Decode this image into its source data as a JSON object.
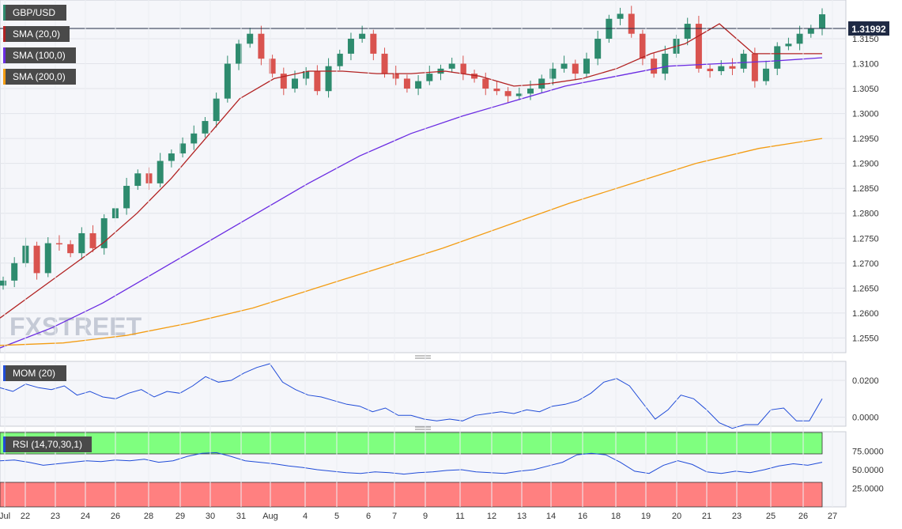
{
  "chart_data": [
    {
      "type": "candlestick",
      "symbol": "GBP/USD",
      "last_price": "1.31992",
      "y_ticks": [
        "1.3150",
        "1.3100",
        "1.3050",
        "1.3000",
        "1.2950",
        "1.2900",
        "1.2850",
        "1.2800",
        "1.2750",
        "1.2700",
        "1.2650",
        "1.2600",
        "1.2550"
      ],
      "ylim": [
        1.253,
        1.3215
      ],
      "grid": true,
      "x_ticks": [
        "Jul",
        "22",
        "23",
        "24",
        "26",
        "28",
        "29",
        "30",
        "31",
        "Aug",
        "4",
        "5",
        "6",
        "7",
        "9",
        "11",
        "12",
        "13",
        "14",
        "16",
        "18",
        "19",
        "20",
        "21",
        "23",
        "25",
        "26",
        "27"
      ],
      "watermark": "FXSTREET",
      "colors": {
        "up": "#2e8b6e",
        "down": "#d9534f"
      },
      "series": [
        {
          "name": "GBP/USD",
          "values": [
            1.2665,
            1.27,
            1.2735,
            1.268,
            1.274,
            1.2738,
            1.272,
            1.276,
            1.273,
            1.279,
            1.281,
            1.2855,
            1.288,
            1.286,
            1.2905,
            1.292,
            1.294,
            1.296,
            1.2985,
            1.303,
            1.31,
            1.314,
            1.316,
            1.311,
            1.308,
            1.305,
            1.307,
            1.3085,
            1.3045,
            1.3095,
            1.312,
            1.315,
            1.316,
            1.312,
            1.308,
            1.307,
            1.305,
            1.3065,
            1.308,
            1.309,
            1.31,
            1.308,
            1.307,
            1.305,
            1.3045,
            1.3035,
            1.304,
            1.305,
            1.307,
            1.309,
            1.31,
            1.308,
            1.311,
            1.315,
            1.319,
            1.32,
            1.316,
            1.311,
            1.308,
            1.312,
            1.315,
            1.318,
            1.309,
            1.3085,
            1.3095,
            1.309,
            1.312,
            1.3065,
            1.309,
            1.3135,
            1.314,
            1.316,
            1.317,
            1.3199
          ]
        },
        {
          "name": "SMA (20,0)",
          "values": [
            1.259,
            1.264,
            1.269,
            1.274,
            1.28,
            1.287,
            1.295,
            1.303,
            1.307,
            1.3085,
            1.3085,
            1.308,
            1.308,
            1.3085,
            1.3075,
            1.3055,
            1.306,
            1.307,
            1.309,
            1.312,
            1.314,
            1.318,
            1.312,
            1.312,
            1.312
          ]
        },
        {
          "name": "SMA (100,0)",
          "values": [
            1.253,
            1.257,
            1.262,
            1.268,
            1.274,
            1.28,
            1.286,
            1.2915,
            1.296,
            1.2995,
            1.3025,
            1.3055,
            1.3075,
            1.3095,
            1.31,
            1.3105,
            1.3112
          ]
        },
        {
          "name": "SMA (200,0)",
          "values": [
            1.2535,
            1.254,
            1.2555,
            1.258,
            1.261,
            1.265,
            1.269,
            1.273,
            1.2775,
            1.282,
            1.286,
            1.29,
            1.293,
            1.295
          ]
        }
      ]
    },
    {
      "type": "line",
      "name": "MOM (20)",
      "y_ticks": [
        "0.0200",
        "0.0000"
      ],
      "ylim": [
        -0.004,
        0.029
      ],
      "values": [
        0.016,
        0.014,
        0.018,
        0.016,
        0.015,
        0.017,
        0.012,
        0.014,
        0.011,
        0.01,
        0.013,
        0.015,
        0.011,
        0.014,
        0.013,
        0.017,
        0.022,
        0.019,
        0.02,
        0.024,
        0.027,
        0.029,
        0.019,
        0.015,
        0.012,
        0.011,
        0.009,
        0.007,
        0.006,
        0.003,
        0.005,
        0.001,
        0.001,
        -0.001,
        -0.002,
        -0.001,
        -0.002,
        0.001,
        0.002,
        0.003,
        0.002,
        0.004,
        0.003,
        0.006,
        0.007,
        0.009,
        0.013,
        0.019,
        0.021,
        0.017,
        0.008,
        -0.001,
        0.004,
        0.012,
        0.01,
        0.004,
        -0.003,
        -0.006,
        -0.004,
        -0.004,
        0.004,
        0.005,
        -0.002,
        -0.002,
        0.01
      ]
    },
    {
      "type": "line",
      "name": "RSI (14,70,30,1)",
      "y_ticks": [
        "75.0000",
        "50.0000",
        "25.0000"
      ],
      "ylim": [
        0,
        100
      ],
      "values": [
        62,
        63,
        60,
        56,
        58,
        60,
        62,
        61,
        63,
        62,
        64,
        60,
        62,
        68,
        72,
        73,
        68,
        62,
        60,
        58,
        55,
        53,
        50,
        48,
        46,
        45,
        47,
        46,
        44,
        46,
        47,
        49,
        50,
        47,
        46,
        45,
        48,
        50,
        55,
        60,
        70,
        72,
        70,
        60,
        48,
        45,
        56,
        62,
        57,
        47,
        45,
        48,
        46,
        50,
        55,
        58,
        56,
        60
      ]
    }
  ],
  "legend": {
    "symbol": "GBP/USD",
    "sma20": "SMA (20,0)",
    "sma100": "SMA (100,0)",
    "sma200": "SMA (200,0)",
    "mom": "MOM (20)",
    "rsi": "RSI (14,70,30,1)"
  }
}
